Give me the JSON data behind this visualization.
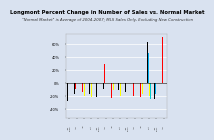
{
  "title": "Longmont Percent Change in Number of Sales vs. Normal Market",
  "subtitle": "\"Normal Market\" is Average of 2004-2007; MLS Sales Only, Excluding New Construction",
  "background_color": "#d9e2f0",
  "grid_color": "#ffffff",
  "bar_groups": [
    {
      "bars": [
        {
          "c": "#000000",
          "v": -0.28
        },
        {
          "c": "#ff0000",
          "v": -0.05
        },
        {
          "c": "#00b0f0",
          "v": null
        },
        {
          "c": "#00b050",
          "v": null
        },
        {
          "c": "#ffff00",
          "v": -0.3
        },
        {
          "c": "#00cccc",
          "v": null
        }
      ]
    },
    {
      "bars": [
        {
          "c": "#000000",
          "v": -0.17
        },
        {
          "c": "#ff0000",
          "v": -0.1
        },
        {
          "c": "#00b0f0",
          "v": 0.2
        },
        {
          "c": "#00b050",
          "v": null
        },
        {
          "c": "#ffff00",
          "v": -0.1
        },
        {
          "c": "#00cccc",
          "v": null
        }
      ]
    },
    {
      "bars": [
        {
          "c": "#000000",
          "v": -0.2
        },
        {
          "c": "#ff0000",
          "v": -0.14
        },
        {
          "c": "#00b0f0",
          "v": null
        },
        {
          "c": "#00b050",
          "v": null
        },
        {
          "c": "#ffff00",
          "v": -0.2
        },
        {
          "c": "#00cccc",
          "v": null
        }
      ]
    },
    {
      "bars": [
        {
          "c": "#000000",
          "v": -0.18
        },
        {
          "c": "#ff0000",
          "v": 0.38
        },
        {
          "c": "#00b0f0",
          "v": null
        },
        {
          "c": "#00b050",
          "v": null
        },
        {
          "c": "#ffff00",
          "v": -0.22
        },
        {
          "c": "#00cccc",
          "v": null
        }
      ]
    },
    {
      "bars": [
        {
          "c": "#000000",
          "v": -0.22
        },
        {
          "c": "#ff0000",
          "v": 0.55
        },
        {
          "c": "#00b0f0",
          "v": null
        },
        {
          "c": "#00b050",
          "v": null
        },
        {
          "c": "#ffff00",
          "v": -0.08
        },
        {
          "c": "#00cccc",
          "v": null
        }
      ]
    },
    {
      "bars": [
        {
          "c": "#000000",
          "v": -0.1
        },
        {
          "c": "#ff0000",
          "v": 0.28
        },
        {
          "c": "#00b0f0",
          "v": null
        },
        {
          "c": "#00b050",
          "v": null
        },
        {
          "c": "#ffff00",
          "v": -0.05
        },
        {
          "c": "#00cccc",
          "v": null
        }
      ]
    },
    {
      "bars": [
        {
          "c": "#000000",
          "v": -0.08
        },
        {
          "c": "#ff0000",
          "v": -0.24
        },
        {
          "c": "#00b0f0",
          "v": null
        },
        {
          "c": "#00b050",
          "v": null
        },
        {
          "c": "#ffff00",
          "v": -0.12
        },
        {
          "c": "#00cccc",
          "v": null
        }
      ]
    },
    {
      "bars": [
        {
          "c": "#000000",
          "v": -0.12
        },
        {
          "c": "#ff0000",
          "v": -0.18
        },
        {
          "c": "#00b0f0",
          "v": null
        },
        {
          "c": "#00b050",
          "v": null
        },
        {
          "c": "#ffff00",
          "v": -0.2
        },
        {
          "c": "#00cccc",
          "v": null
        }
      ]
    },
    {
      "bars": [
        {
          "c": "#000000",
          "v": -0.15
        },
        {
          "c": "#ff0000",
          "v": 0.38
        },
        {
          "c": "#00b0f0",
          "v": null
        },
        {
          "c": "#00b050",
          "v": null
        },
        {
          "c": "#ffff00",
          "v": -0.18
        },
        {
          "c": "#00cccc",
          "v": null
        }
      ]
    },
    {
      "bars": [
        {
          "c": "#000000",
          "v": -0.2
        },
        {
          "c": "#ff0000",
          "v": -0.2
        },
        {
          "c": "#00b0f0",
          "v": null
        },
        {
          "c": "#00b050",
          "v": null
        },
        {
          "c": "#ffff00",
          "v": -0.2
        },
        {
          "c": "#00cccc",
          "v": null
        }
      ]
    },
    {
      "bars": [
        {
          "c": "#000000",
          "v": -0.28
        },
        {
          "c": "#ff0000",
          "v": -0.22
        },
        {
          "c": "#00b0f0",
          "v": null
        },
        {
          "c": "#00b050",
          "v": null
        },
        {
          "c": "#ffff00",
          "v": -0.18
        },
        {
          "c": "#00cccc",
          "v": null
        }
      ]
    },
    {
      "bars": [
        {
          "c": "#000000",
          "v": 0.62
        },
        {
          "c": "#ff0000",
          "v": 0.52
        },
        {
          "c": "#00b0f0",
          "v": 0.45
        },
        {
          "c": "#00b050",
          "v": 0.12
        },
        {
          "c": "#ffff00",
          "v": -0.2
        },
        {
          "c": "#00cccc",
          "v": -0.25
        }
      ]
    },
    {
      "bars": [
        {
          "c": "#000000",
          "v": -0.25
        },
        {
          "c": "#ff0000",
          "v": -0.32
        },
        {
          "c": "#00b0f0",
          "v": -0.18
        },
        {
          "c": "#00b050",
          "v": null
        },
        {
          "c": "#ffff00",
          "v": -0.3
        },
        {
          "c": "#00cccc",
          "v": null
        }
      ]
    },
    {
      "bars": [
        {
          "c": "#000000",
          "v": -0.28
        },
        {
          "c": "#ff0000",
          "v": 0.7
        },
        {
          "c": "#00b0f0",
          "v": null
        },
        {
          "c": "#00b050",
          "v": null
        },
        {
          "c": "#ffff00",
          "v": -0.22
        },
        {
          "c": "#00cccc",
          "v": null
        }
      ]
    }
  ],
  "ylim": [
    -0.55,
    0.75
  ],
  "title_fontsize": 3.8,
  "subtitle_fontsize": 2.8
}
